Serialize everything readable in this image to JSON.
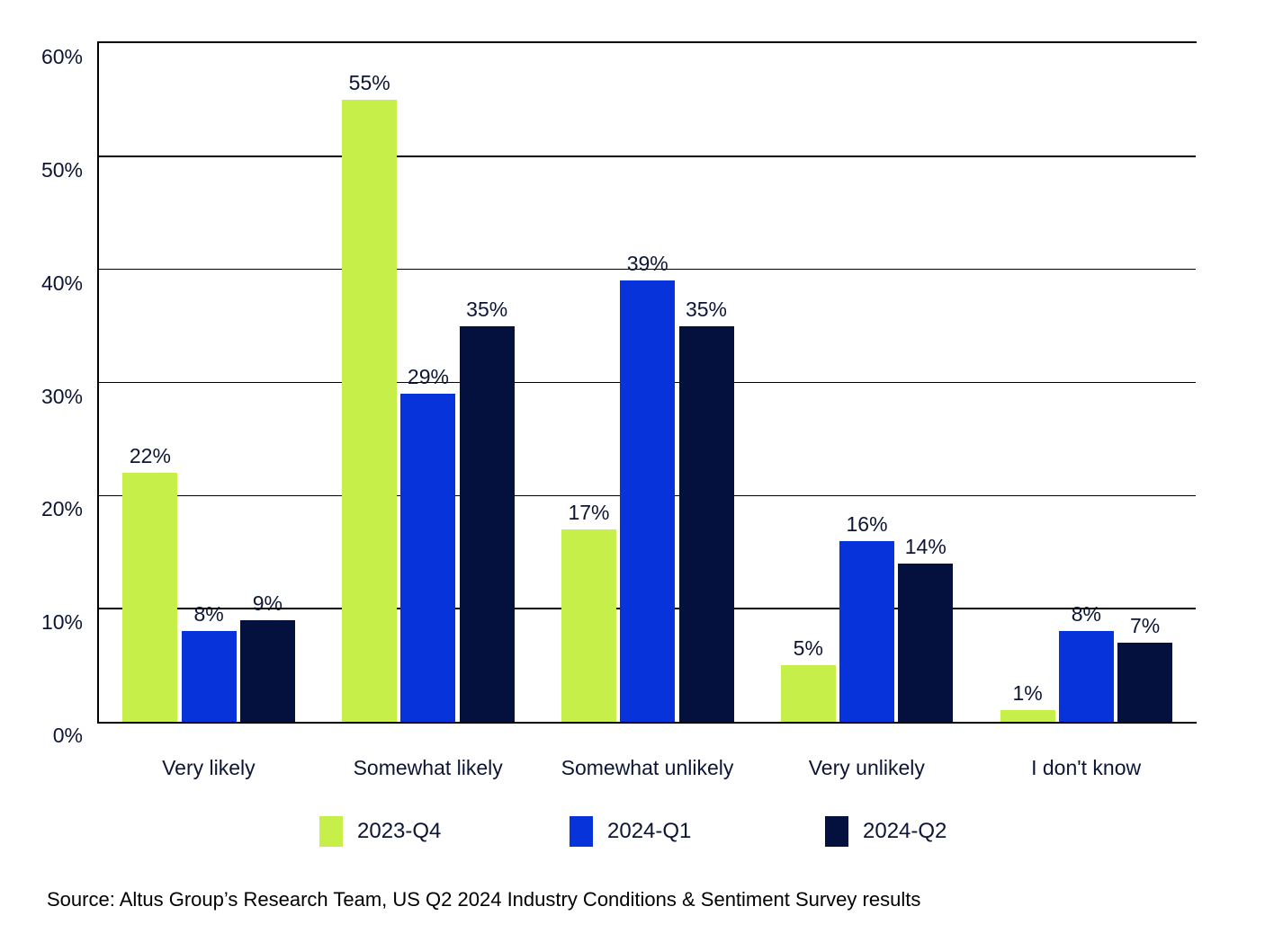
{
  "chart_data": {
    "type": "bar",
    "title": "",
    "xlabel": "",
    "ylabel": "",
    "categories": [
      "Very likely",
      "Somewhat likely",
      "Somewhat unlikely",
      "Very unlikely",
      "I don't know"
    ],
    "series": [
      {
        "name": "2023-Q4",
        "color": "#c6ef4a",
        "values": [
          22,
          55,
          17,
          5,
          1
        ],
        "labels": [
          "22%",
          "55%",
          "17%",
          "5%",
          "1%"
        ]
      },
      {
        "name": "2024-Q1",
        "color": "#0634da",
        "values": [
          8,
          29,
          39,
          16,
          8
        ],
        "labels": [
          "8%",
          "29%",
          "39%",
          "16%",
          "8%"
        ]
      },
      {
        "name": "2024-Q2",
        "color": "#04113f",
        "values": [
          9,
          35,
          35,
          14,
          7
        ],
        "labels": [
          "9%",
          "35%",
          "35%",
          "14%",
          "7%"
        ]
      }
    ],
    "ylim": [
      0,
      60
    ],
    "yticks": [
      0,
      10,
      20,
      30,
      40,
      50,
      60
    ],
    "ytick_labels": [
      "0%",
      "10%",
      "20%",
      "30%",
      "40%",
      "50%",
      "60%"
    ],
    "grid": true,
    "legend_position": "bottom"
  },
  "legend": {
    "items": [
      {
        "label": "2023-Q4",
        "color": "#c6ef4a"
      },
      {
        "label": "2024-Q1",
        "color": "#0634da"
      },
      {
        "label": "2024-Q2",
        "color": "#04113f"
      }
    ]
  },
  "source_note": "Source: Altus Group’s Research Team, US Q2 2024 Industry Conditions & Sentiment Survey results",
  "colors": {
    "background": "#ffffff",
    "grid": "#000000",
    "text": "#0d1535",
    "source_text": "#000000"
  }
}
